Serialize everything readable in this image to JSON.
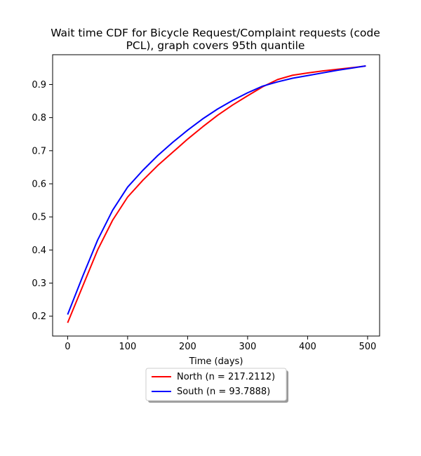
{
  "chart_data": {
    "type": "line",
    "title_lines": [
      "Wait time CDF for Bicycle Request/Complaint  requests (code",
      "PCL), graph covers 95th quantile"
    ],
    "xlabel": "Time (days)",
    "ylabel": "",
    "xlim": [
      -25,
      520
    ],
    "ylim": [
      0.14,
      0.99
    ],
    "xticks": [
      0,
      100,
      200,
      300,
      400,
      500
    ],
    "yticks": [
      0.2,
      0.3,
      0.4,
      0.5,
      0.6,
      0.7,
      0.8,
      0.9
    ],
    "xtick_labels": [
      "0",
      "100",
      "200",
      "300",
      "400",
      "500"
    ],
    "ytick_labels": [
      "0.2",
      "0.3",
      "0.4",
      "0.5",
      "0.6",
      "0.7",
      "0.8",
      "0.9"
    ],
    "grid": false,
    "legend_position": "below plot, centered",
    "series": [
      {
        "name": "North (n = 217.2112)",
        "color": "#ff0000",
        "x": [
          0,
          25,
          50,
          75,
          100,
          125,
          150,
          175,
          200,
          225,
          250,
          275,
          300,
          325,
          350,
          375,
          400,
          425,
          450,
          475,
          497
        ],
        "y": [
          0.18,
          0.29,
          0.4,
          0.49,
          0.56,
          0.61,
          0.655,
          0.695,
          0.735,
          0.772,
          0.807,
          0.838,
          0.866,
          0.893,
          0.915,
          0.928,
          0.935,
          0.941,
          0.946,
          0.951,
          0.956
        ]
      },
      {
        "name": "South (n = 93.7888)",
        "color": "#0000ff",
        "x": [
          0,
          25,
          50,
          75,
          100,
          125,
          150,
          175,
          200,
          225,
          250,
          275,
          300,
          325,
          350,
          375,
          400,
          425,
          450,
          475,
          497
        ],
        "y": [
          0.205,
          0.32,
          0.43,
          0.52,
          0.59,
          0.64,
          0.685,
          0.725,
          0.762,
          0.796,
          0.826,
          0.852,
          0.875,
          0.895,
          0.908,
          0.919,
          0.927,
          0.935,
          0.943,
          0.95,
          0.956
        ]
      }
    ]
  }
}
